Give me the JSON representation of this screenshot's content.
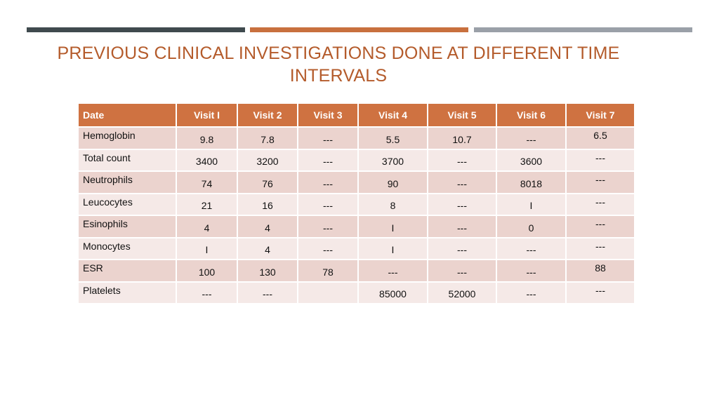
{
  "colors": {
    "bar1": "#3f4a4e",
    "bar2": "#c8703e",
    "bar3": "#9aa0a8",
    "title": "#b45b2b",
    "header": "#cf7241"
  },
  "title": "PREVIOUS CLINICAL INVESTIGATIONS  DONE AT DIFFERENT TIME INTERVALS",
  "table": {
    "headers": [
      "Date",
      "Visit I",
      "Visit  2",
      "Visit  3",
      "Visit  4",
      "Visit  5",
      "Visit  6",
      "Visit  7"
    ],
    "rows": [
      [
        "Hemoglobin",
        "9.8",
        "7.8",
        "---",
        "5.5",
        "10.7",
        "---",
        "6.5"
      ],
      [
        "Total count",
        "3400",
        "3200",
        "---",
        "3700",
        "---",
        "3600",
        "---"
      ],
      [
        "Neutrophils",
        "74",
        "76",
        "---",
        "90",
        "---",
        "8018",
        "---"
      ],
      [
        "Leucocytes",
        "21",
        "16",
        "---",
        "8",
        "---",
        "I",
        "---"
      ],
      [
        "Esinophils",
        "4",
        "4",
        "---",
        "I",
        "---",
        "0",
        "---"
      ],
      [
        "Monocytes",
        "I",
        "4",
        "---",
        "I",
        "---",
        "---",
        "---"
      ],
      [
        "ESR",
        "100",
        "130",
        "78",
        "---",
        "---",
        "---",
        "88"
      ],
      [
        "Platelets",
        "---",
        "---",
        "",
        "85000",
        "52000",
        "---",
        "---"
      ]
    ]
  }
}
